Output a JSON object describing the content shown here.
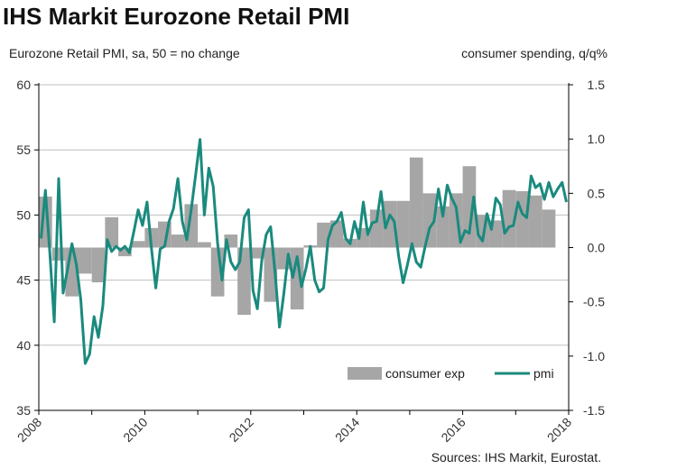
{
  "chart_data": {
    "type": "bar+line",
    "title": "IHS Markit Eurozone Retail PMI",
    "left_axis_label": "Eurozone Retail PMI, sa, 50 = no change",
    "right_axis_label": "consumer spending, q/q%",
    "source": "Sources: IHS Markit, Eurostat.",
    "left_axis": {
      "min": 35,
      "max": 60,
      "ticks": [
        35,
        40,
        45,
        50,
        55,
        60
      ]
    },
    "right_axis": {
      "min": -1.5,
      "max": 1.5,
      "ticks": [
        "-1.5",
        "-1.0",
        "-0.5",
        "0.0",
        "0.5",
        "1.0",
        "1.5"
      ]
    },
    "x_axis": {
      "min": 2008,
      "max": 2018,
      "ticks": [
        2008,
        2010,
        2012,
        2014,
        2016,
        2018
      ]
    },
    "legend": [
      "consumer exp",
      "pmi"
    ],
    "colors": {
      "bars": "#a6a6a6",
      "line": "#1a8a7e",
      "axis": "#000000",
      "grid": "#bfbfbf"
    },
    "series": [
      {
        "name": "consumer exp",
        "axis": "right",
        "quarter_starts": [
          2008.0,
          2008.25,
          2008.5,
          2008.75,
          2009.0,
          2009.25,
          2009.5,
          2009.75,
          2010.0,
          2010.25,
          2010.5,
          2010.75,
          2011.0,
          2011.25,
          2011.5,
          2011.75,
          2012.0,
          2012.25,
          2012.5,
          2012.75,
          2013.0,
          2013.25,
          2013.5,
          2013.75,
          2014.0,
          2014.25,
          2014.5,
          2014.75,
          2015.0,
          2015.25,
          2015.5,
          2015.75,
          2016.0,
          2016.25,
          2016.5,
          2016.75,
          2017.0,
          2017.25,
          2017.5
        ],
        "values": [
          0.47,
          -0.12,
          -0.45,
          -0.24,
          -0.32,
          0.28,
          -0.08,
          0.06,
          0.18,
          0.24,
          0.12,
          0.4,
          0.05,
          -0.45,
          0.12,
          -0.62,
          -0.1,
          -0.5,
          -0.2,
          -0.57,
          0.02,
          0.23,
          0.25,
          0.08,
          0.18,
          0.35,
          0.43,
          0.43,
          0.83,
          0.5,
          0.38,
          0.5,
          0.75,
          0.3,
          0.25,
          0.53,
          0.52,
          0.48,
          0.35
        ]
      },
      {
        "name": "pmi",
        "axis": "left",
        "dates": [
          2008.042,
          2008.125,
          2008.208,
          2008.292,
          2008.375,
          2008.458,
          2008.542,
          2008.625,
          2008.708,
          2008.792,
          2008.875,
          2008.958,
          2009.042,
          2009.125,
          2009.208,
          2009.292,
          2009.375,
          2009.458,
          2009.542,
          2009.625,
          2009.708,
          2009.792,
          2009.875,
          2009.958,
          2010.042,
          2010.125,
          2010.208,
          2010.292,
          2010.375,
          2010.458,
          2010.542,
          2010.625,
          2010.708,
          2010.792,
          2010.875,
          2010.958,
          2011.042,
          2011.125,
          2011.208,
          2011.292,
          2011.375,
          2011.458,
          2011.542,
          2011.625,
          2011.708,
          2011.792,
          2011.875,
          2011.958,
          2012.042,
          2012.125,
          2012.208,
          2012.292,
          2012.375,
          2012.458,
          2012.542,
          2012.625,
          2012.708,
          2012.792,
          2012.875,
          2012.958,
          2013.042,
          2013.125,
          2013.208,
          2013.292,
          2013.375,
          2013.458,
          2013.542,
          2013.625,
          2013.708,
          2013.792,
          2013.875,
          2013.958,
          2014.042,
          2014.125,
          2014.208,
          2014.292,
          2014.375,
          2014.458,
          2014.542,
          2014.625,
          2014.708,
          2014.792,
          2014.875,
          2014.958,
          2015.042,
          2015.125,
          2015.208,
          2015.292,
          2015.375,
          2015.458,
          2015.542,
          2015.625,
          2015.708,
          2015.792,
          2015.875,
          2015.958,
          2016.042,
          2016.125,
          2016.208,
          2016.292,
          2016.375,
          2016.458,
          2016.542,
          2016.625,
          2016.708,
          2016.792,
          2016.875,
          2016.958,
          2017.042,
          2017.125,
          2017.208,
          2017.292,
          2017.375,
          2017.458,
          2017.542,
          2017.625,
          2017.708,
          2017.792,
          2017.875,
          2017.958
        ],
        "values": [
          48.2,
          51.9,
          47.1,
          41.8,
          52.8,
          44.0,
          45.8,
          47.8,
          46.2,
          43.5,
          38.6,
          39.3,
          42.2,
          40.6,
          43.0,
          48.1,
          47.2,
          47.6,
          47.3,
          47.6,
          47.1,
          48.7,
          50.4,
          49.2,
          51.0,
          47.5,
          44.4,
          47.4,
          47.6,
          49.5,
          50.5,
          52.8,
          49.5,
          48.1,
          50.4,
          53.0,
          55.8,
          50.0,
          53.6,
          52.2,
          47.8,
          45.0,
          48.1,
          46.4,
          45.8,
          46.4,
          49.8,
          50.4,
          44.2,
          42.8,
          46.5,
          48.5,
          49.1,
          45.6,
          41.4,
          44.0,
          47.0,
          45.2,
          46.8,
          44.5,
          45.9,
          47.6,
          45.0,
          44.1,
          44.4,
          48.1,
          49.2,
          49.5,
          50.2,
          48.2,
          47.8,
          49.5,
          48.2,
          51.0,
          48.5,
          49.4,
          49.5,
          51.8,
          49.0,
          50.0,
          49.5,
          46.8,
          44.8,
          46.2,
          47.8,
          46.4,
          46.0,
          47.6,
          49.0,
          49.5,
          52.0,
          49.9,
          52.3,
          51.3,
          50.6,
          47.9,
          48.8,
          48.6,
          51.4,
          48.5,
          48.0,
          50.1,
          48.9,
          51.3,
          50.8,
          48.6,
          49.1,
          49.2,
          51.0,
          50.1,
          49.8,
          53.0,
          52.1,
          52.4,
          51.2,
          52.5,
          51.4,
          52.0,
          52.5,
          51.0
        ]
      }
    ]
  }
}
